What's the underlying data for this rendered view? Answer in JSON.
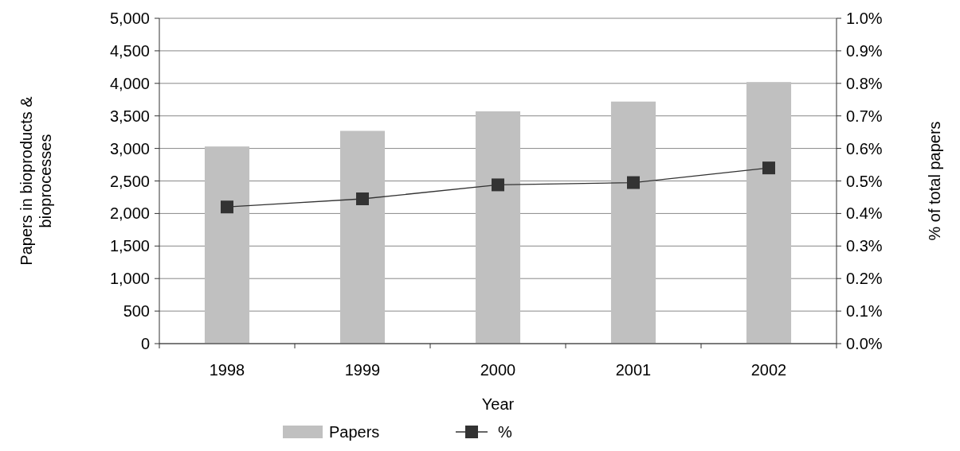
{
  "chart_data": {
    "type": "bar",
    "xlabel": "Year",
    "ylabel": "Papers in bioproducts & bioprocesses",
    "y2label": "% of total papers",
    "categories": [
      "1998",
      "1999",
      "2000",
      "2001",
      "2002"
    ],
    "series": [
      {
        "name": "Papers",
        "color": "#c0c0c0",
        "values": [
          3030,
          3270,
          3570,
          3720,
          4020
        ]
      },
      {
        "name": "%",
        "type": "line",
        "axis": "y2",
        "color": "#333333",
        "marker": "square",
        "values": [
          0.42,
          0.445,
          0.488,
          0.495,
          0.54
        ]
      }
    ],
    "ylim": [
      0,
      5000
    ],
    "yticks": [
      {
        "value": 0,
        "label": "0"
      },
      {
        "value": 500,
        "label": "500"
      },
      {
        "value": 1000,
        "label": "1,000"
      },
      {
        "value": 1500,
        "label": "1,500"
      },
      {
        "value": 2000,
        "label": "2,000"
      },
      {
        "value": 2500,
        "label": "2,500"
      },
      {
        "value": 3000,
        "label": "3,000"
      },
      {
        "value": 3500,
        "label": "3,500"
      },
      {
        "value": 4000,
        "label": "4,000"
      },
      {
        "value": 4500,
        "label": "4,500"
      },
      {
        "value": 5000,
        "label": "5,000"
      }
    ],
    "y2lim": [
      0,
      1
    ],
    "y2ticks": [
      {
        "value": 0,
        "label": "0.0%"
      },
      {
        "value": 0.1,
        "label": "0.1%"
      },
      {
        "value": 0.2,
        "label": "0.2%"
      },
      {
        "value": 0.3,
        "label": "0.3%"
      },
      {
        "value": 0.4,
        "label": "0.4%"
      },
      {
        "value": 0.5,
        "label": "0.5%"
      },
      {
        "value": 0.6,
        "label": "0.6%"
      },
      {
        "value": 0.7,
        "label": "0.7%"
      },
      {
        "value": 0.8,
        "label": "0.8%"
      },
      {
        "value": 0.9,
        "label": "0.9%"
      },
      {
        "value": 1,
        "label": "1.0%"
      }
    ],
    "grid": "y",
    "legend": "bottom"
  }
}
